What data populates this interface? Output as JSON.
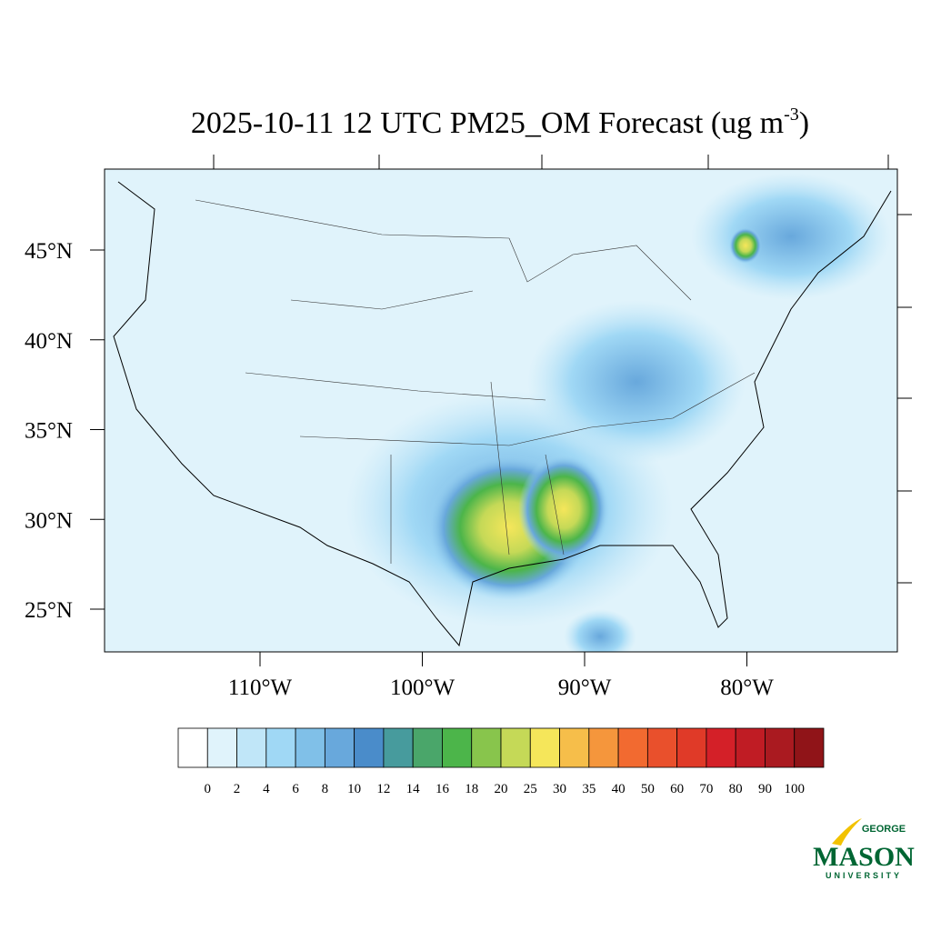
{
  "title": {
    "main": "2025-10-11 12 UTC PM25_OM Forecast (ug m",
    "superscript": "-3",
    "close": ")"
  },
  "lat_labels": [
    {
      "value": 45,
      "label": "45°N"
    },
    {
      "value": 40,
      "label": "40°N"
    },
    {
      "value": 35,
      "label": "35°N"
    },
    {
      "value": 30,
      "label": "30°N"
    },
    {
      "value": 25,
      "label": "25°N"
    }
  ],
  "lon_labels": [
    {
      "value": -110,
      "label": "110°W"
    },
    {
      "value": -100,
      "label": "100°W"
    },
    {
      "value": -90,
      "label": "90°W"
    },
    {
      "value": -80,
      "label": "80°W"
    }
  ],
  "colorbar": {
    "levels": [
      0,
      2,
      4,
      6,
      8,
      10,
      12,
      14,
      16,
      18,
      20,
      25,
      30,
      35,
      40,
      50,
      60,
      70,
      80,
      90,
      100
    ],
    "colors": [
      "#ffffff",
      "#e0f3fb",
      "#c0e6f8",
      "#a0d8f5",
      "#80c0e8",
      "#68a8dc",
      "#4a8cca",
      "#479b9d",
      "#4aa66a",
      "#4cb54a",
      "#88c54c",
      "#c5d957",
      "#f5e65a",
      "#f6be4a",
      "#f5963c",
      "#f26a30",
      "#e9502c",
      "#e03a28",
      "#d42028",
      "#c01c24",
      "#aa1a20",
      "#901418"
    ]
  },
  "logo": {
    "top": "GEORGE",
    "main": "MASON",
    "bottom": "UNIVERSITY"
  }
}
